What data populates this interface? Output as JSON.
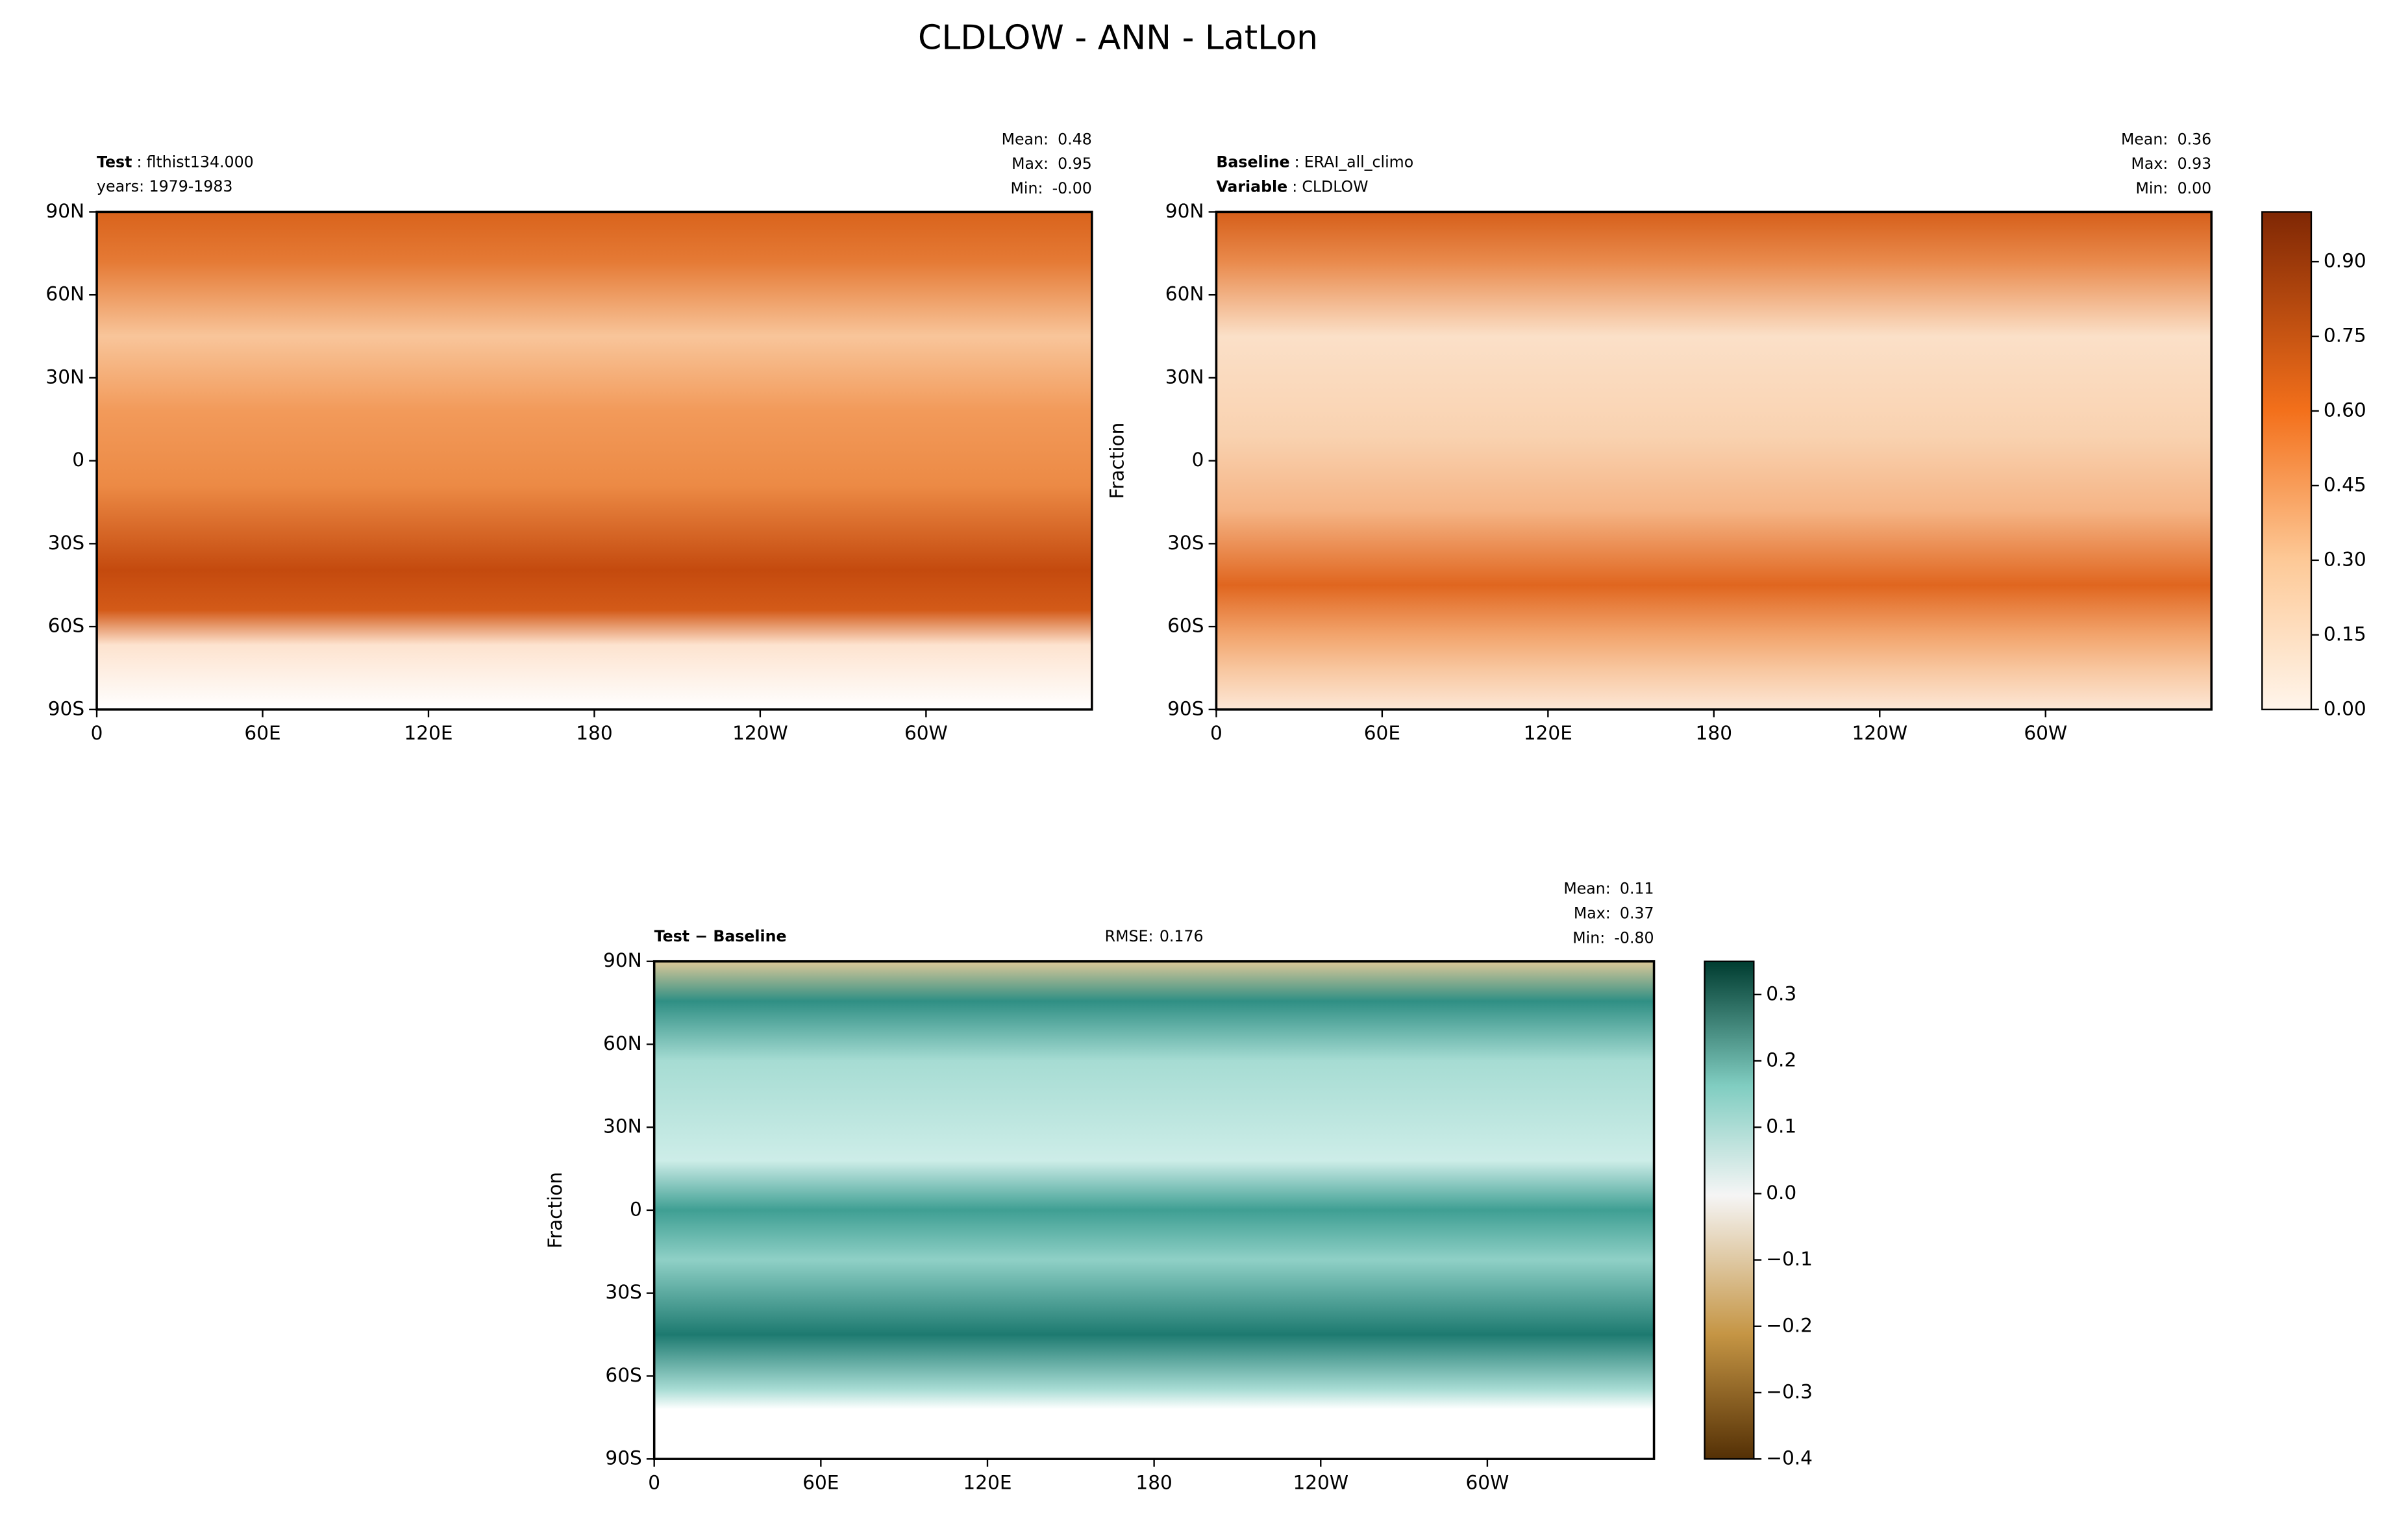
{
  "title": "CLDLOW - ANN - LatLon",
  "chart_data": [
    {
      "type": "map",
      "labels": [
        {
          "name": "Test",
          "sep": ":",
          "value": "flthist134.000"
        }
      ],
      "note": "years: 1979-1983",
      "stats": [
        {
          "name": "Mean:",
          "value": 0.48
        },
        {
          "name": "Max:",
          "value": 0.95
        },
        {
          "name": "Min:",
          "value": 0,
          "label": "-0.00"
        }
      ],
      "xlim": [
        0,
        360
      ],
      "ylim": [
        -90,
        90
      ],
      "xticks": [
        0,
        {
          "value": 60,
          "label": "60E"
        },
        {
          "value": 120,
          "label": "120E"
        },
        180,
        {
          "value": 240,
          "label": "120W"
        },
        {
          "value": 300,
          "label": "60W"
        }
      ],
      "yticks": [
        {
          "value": 90,
          "label": "90N"
        },
        {
          "value": 60,
          "label": "60N"
        },
        {
          "value": 30,
          "label": "30N"
        },
        0,
        {
          "value": -30,
          "label": "30S"
        },
        {
          "value": -60,
          "label": "60S"
        },
        {
          "value": -90,
          "label": "90S"
        }
      ]
    },
    {
      "type": "map",
      "labels": [
        {
          "name": "Baseline",
          "sep": ":",
          "value": "ERAI_all_climo"
        },
        {
          "name": "Variable",
          "sep": ":",
          "value": "CLDLOW"
        }
      ],
      "stats": [
        {
          "name": "Mean:",
          "value": 0.36
        },
        {
          "name": "Max:",
          "value": 0.93
        },
        {
          "name": "Min:",
          "value": 0,
          "label": "0.00"
        }
      ],
      "ylabel": "Fraction",
      "xlim": [
        0,
        360
      ],
      "ylim": [
        -90,
        90
      ],
      "xticks": [
        0,
        {
          "value": 60,
          "label": "60E"
        },
        {
          "value": 120,
          "label": "120E"
        },
        180,
        {
          "value": 240,
          "label": "120W"
        },
        {
          "value": 300,
          "label": "60W"
        }
      ],
      "yticks": [
        {
          "value": 90,
          "label": "90N"
        },
        {
          "value": 60,
          "label": "60N"
        },
        {
          "value": 30,
          "label": "30N"
        },
        0,
        {
          "value": -30,
          "label": "30S"
        },
        {
          "value": -60,
          "label": "60S"
        },
        {
          "value": -90,
          "label": "90S"
        }
      ],
      "clim": [
        0,
        1
      ],
      "cticks": [
        {
          "value": 0,
          "label": "0.00"
        },
        0.15,
        {
          "value": 0.3,
          "label": "0.30"
        },
        0.45,
        {
          "value": 0.6,
          "label": "0.60"
        },
        0.75,
        {
          "value": 0.9,
          "label": "0.90"
        }
      ]
    },
    {
      "type": "map",
      "labels": [
        {
          "name": "Test − Baseline"
        }
      ],
      "rmse": {
        "name": "RMSE:",
        "value": 0.176
      },
      "stats": [
        {
          "name": "Mean:",
          "value": 0.11
        },
        {
          "name": "Max:",
          "value": 0.37
        },
        {
          "name": "Min:",
          "value": -0.8,
          "label": "-0.80"
        }
      ],
      "ylabel": "Fraction",
      "xlim": [
        0,
        360
      ],
      "ylim": [
        -90,
        90
      ],
      "xticks": [
        0,
        {
          "value": 60,
          "label": "60E"
        },
        {
          "value": 120,
          "label": "120E"
        },
        180,
        {
          "value": 240,
          "label": "120W"
        },
        {
          "value": 300,
          "label": "60W"
        }
      ],
      "yticks": [
        {
          "value": 90,
          "label": "90N"
        },
        {
          "value": 60,
          "label": "60N"
        },
        {
          "value": 30,
          "label": "30N"
        },
        0,
        {
          "value": -30,
          "label": "30S"
        },
        {
          "value": -60,
          "label": "60S"
        },
        {
          "value": -90,
          "label": "90S"
        }
      ],
      "clim": [
        -0.4,
        0.35
      ],
      "cticks": [
        {
          "value": -0.4,
          "label": "−0.4"
        },
        {
          "value": -0.3,
          "label": "−0.3"
        },
        {
          "value": -0.2,
          "label": "−0.2"
        },
        {
          "value": -0.1,
          "label": "−0.1"
        },
        {
          "value": 0,
          "label": "0.0"
        },
        0.1,
        0.2,
        0.3
      ]
    }
  ]
}
